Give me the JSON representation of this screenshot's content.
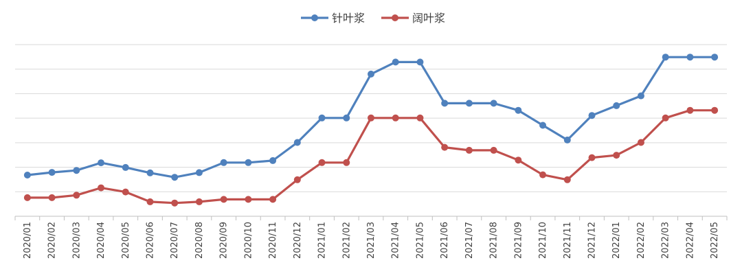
{
  "chart_data": {
    "type": "line",
    "title": "",
    "xlabel": "",
    "ylabel": "",
    "grid": true,
    "legend_position": "top-center",
    "y_axis_labels_shown": false,
    "ylim": [
      0,
      7
    ],
    "categories": [
      "2020/01",
      "2020/02",
      "2020/03",
      "2020/04",
      "2020/05",
      "2020/06",
      "2020/07",
      "2020/08",
      "2020/09",
      "2020/10",
      "2020/11",
      "2020/12",
      "2021/01",
      "2021/02",
      "2021/03",
      "2021/04",
      "2021/05",
      "2021/06",
      "2021/07",
      "2021/08",
      "2021/09",
      "2021/10",
      "2021/11",
      "2021/12",
      "2022/01",
      "2022/02",
      "2022/03",
      "2022/04",
      "2022/05"
    ],
    "series": [
      {
        "name": "针叶浆",
        "color": "#4f81bd",
        "values": [
          1.68,
          1.79,
          1.87,
          2.18,
          1.99,
          1.77,
          1.59,
          1.78,
          2.19,
          2.19,
          2.27,
          3.01,
          4.01,
          4.01,
          5.8,
          6.29,
          6.29,
          4.61,
          4.61,
          4.61,
          4.32,
          3.71,
          3.11,
          4.11,
          4.51,
          4.91,
          6.49,
          6.49,
          6.49
        ]
      },
      {
        "name": "阔叶浆",
        "color": "#c0504d",
        "values": [
          0.76,
          0.76,
          0.86,
          1.16,
          0.99,
          0.59,
          0.54,
          0.59,
          0.69,
          0.69,
          0.69,
          1.49,
          2.19,
          2.19,
          4.01,
          4.01,
          4.01,
          2.81,
          2.69,
          2.69,
          2.29,
          1.69,
          1.49,
          2.39,
          2.49,
          3.01,
          4.01,
          4.32,
          4.32
        ]
      }
    ]
  }
}
